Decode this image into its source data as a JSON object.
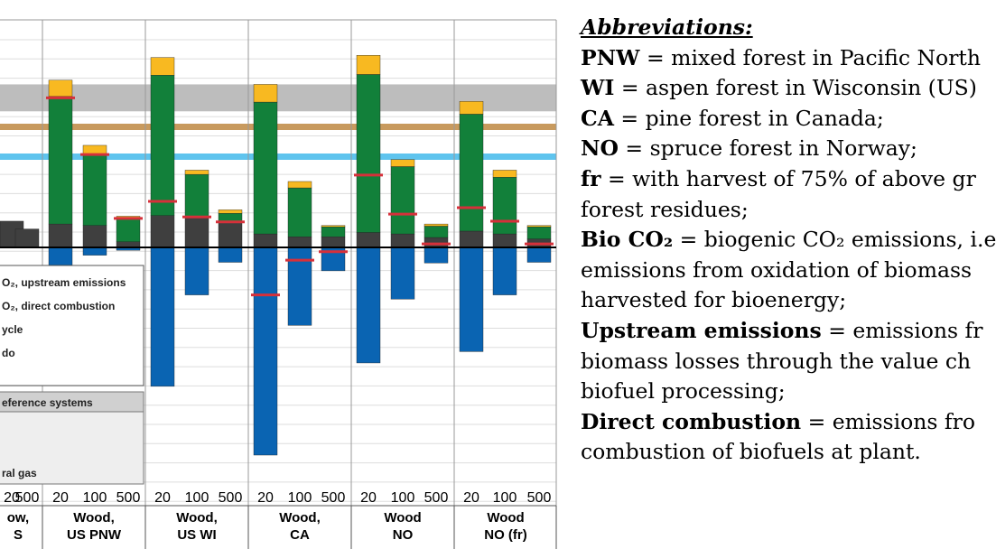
{
  "chart_data": {
    "type": "bar",
    "stacked": true,
    "legend_placement": "left",
    "grid": true,
    "y_range": [
      -320,
      280
    ],
    "groups": [
      {
        "label_lines": [
          "ow,",
          "S"
        ],
        "horizons": [
          "20",
          "500"
        ]
      },
      {
        "label_lines": [
          "Wood,",
          "US PNW"
        ],
        "horizons": [
          "20",
          "100",
          "500"
        ]
      },
      {
        "label_lines": [
          "Wood,",
          "US WI"
        ],
        "horizons": [
          "20",
          "100",
          "500"
        ]
      },
      {
        "label_lines": [
          "Wood,",
          "CA"
        ],
        "horizons": [
          "20",
          "100",
          "500"
        ]
      },
      {
        "label_lines": [
          "Wood",
          "NO"
        ],
        "horizons": [
          "20",
          "100",
          "500"
        ]
      },
      {
        "label_lines": [
          "Wood",
          "NO (fr)"
        ],
        "horizons": [
          "20",
          "100",
          "500"
        ]
      }
    ],
    "reference_lines": [
      {
        "color": "#c89a5e",
        "value": 170
      },
      {
        "color": "#5fc4ee",
        "value": 128
      }
    ],
    "reference_band": {
      "color": "#bdbdbd",
      "from": 230,
      "to": 192
    },
    "legend": {
      "items": [
        "O₂, upstream emissions",
        "O₂, direct combustion",
        "ycle",
        "do"
      ],
      "reference_header": "eference systems",
      "reference_footer": "ral gas"
    },
    "bars": [
      {
        "group": 0,
        "dark": 37,
        "green": 0,
        "yellow": 0,
        "blue": 0,
        "marker": null
      },
      {
        "group": 0,
        "dark": 26,
        "green": 0,
        "yellow": 0,
        "blue": 0,
        "marker": null
      },
      {
        "group": 1,
        "dark": 33,
        "green": 180,
        "yellow": 23,
        "blue": -25,
        "marker": 211
      },
      {
        "group": 1,
        "dark": 31,
        "green": 100,
        "yellow": 13,
        "blue": -11,
        "marker": 131
      },
      {
        "group": 1,
        "dark": 8,
        "green": 33,
        "yellow": 3,
        "blue": -4,
        "marker": 41
      },
      {
        "group": 2,
        "dark": 45,
        "green": 198,
        "yellow": 25,
        "blue": -196,
        "marker": 65
      },
      {
        "group": 2,
        "dark": 43,
        "green": 60,
        "yellow": 6,
        "blue": -67,
        "marker": 43
      },
      {
        "group": 2,
        "dark": 36,
        "green": 12,
        "yellow": 5,
        "blue": -21,
        "marker": 36
      },
      {
        "group": 3,
        "dark": 19,
        "green": 186,
        "yellow": 25,
        "blue": -293,
        "marker": -67
      },
      {
        "group": 3,
        "dark": 15,
        "green": 69,
        "yellow": 9,
        "blue": -110,
        "marker": -18
      },
      {
        "group": 3,
        "dark": 15,
        "green": 14,
        "yellow": 2,
        "blue": -33,
        "marker": -6
      },
      {
        "group": 4,
        "dark": 21,
        "green": 223,
        "yellow": 27,
        "blue": -163,
        "marker": 102
      },
      {
        "group": 4,
        "dark": 19,
        "green": 95,
        "yellow": 10,
        "blue": -73,
        "marker": 47
      },
      {
        "group": 4,
        "dark": 14,
        "green": 16,
        "yellow": 3,
        "blue": -22,
        "marker": 5
      },
      {
        "group": 5,
        "dark": 23,
        "green": 165,
        "yellow": 18,
        "blue": -147,
        "marker": 56
      },
      {
        "group": 5,
        "dark": 19,
        "green": 80,
        "yellow": 10,
        "blue": -67,
        "marker": 37
      },
      {
        "group": 5,
        "dark": 12,
        "green": 17,
        "yellow": 2,
        "blue": -21,
        "marker": 5
      }
    ]
  },
  "abbreviations": {
    "heading": "Abbreviations:",
    "lines": [
      {
        "bold": "PNW",
        "text": " = mixed forest in Pacific North"
      },
      {
        "bold": "WI",
        "text": " = aspen forest in Wisconsin (US)"
      },
      {
        "bold": "CA",
        "text": " = pine forest in Canada;"
      },
      {
        "bold": "NO",
        "text": " = spruce forest in Norway;"
      },
      {
        "bold": "fr",
        "text": " = with harvest of 75% of above gr"
      },
      {
        "bold": "",
        "text": "forest residues;"
      },
      {
        "bold": "Bio CO₂",
        "text": " = biogenic CO₂ emissions, i.e"
      },
      {
        "bold": "",
        "text": "emissions from oxidation of biomass"
      },
      {
        "bold": "",
        "text": "harvested for bioenergy;"
      },
      {
        "bold": "Upstream emissions",
        "text": " = emissions fr"
      },
      {
        "bold": "",
        "text": "biomass losses through the value ch"
      },
      {
        "bold": "",
        "text": "biofuel processing;"
      },
      {
        "bold": "Direct combustion",
        "text": " = emissions fro"
      },
      {
        "bold": "",
        "text": "combustion of biofuels at plant."
      }
    ]
  },
  "colors": {
    "dark": "#3f3f3f",
    "green": "#12803a",
    "yellow": "#f8b921",
    "blue": "#0a64b2",
    "marker": "#d6303a",
    "grid": "#dddddd",
    "axis": "#000000"
  }
}
